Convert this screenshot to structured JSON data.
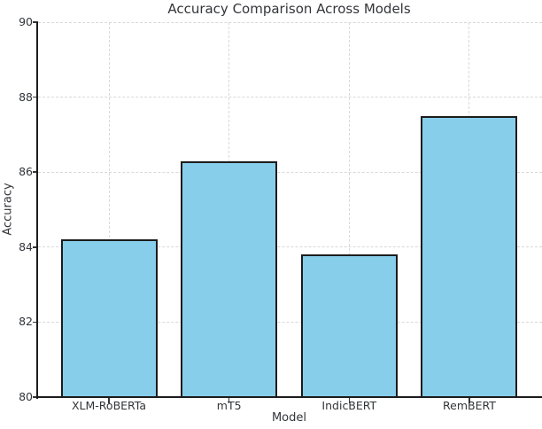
{
  "chart_data": {
    "type": "bar",
    "title": "Accuracy Comparison Across Models",
    "xlabel": "Model",
    "ylabel": "Accuracy",
    "categories": [
      "XLM-RoBERTa",
      "mT5",
      "IndicBERT",
      "RemBERT"
    ],
    "values": [
      84.2,
      86.3,
      83.8,
      87.5
    ],
    "ylim": [
      80,
      90
    ],
    "ytick_step": 2,
    "ytick_labels": [
      "80",
      "82",
      "84",
      "86",
      "88",
      "90"
    ],
    "grid": "dashed, both axes, behind bars",
    "legend": "none",
    "bar_color": "#87CEEB",
    "bar_edge_color": "#1c1c1c",
    "background_color": "#ffffff",
    "text_color": "#333539",
    "grid_color": "#d9d9d9"
  }
}
